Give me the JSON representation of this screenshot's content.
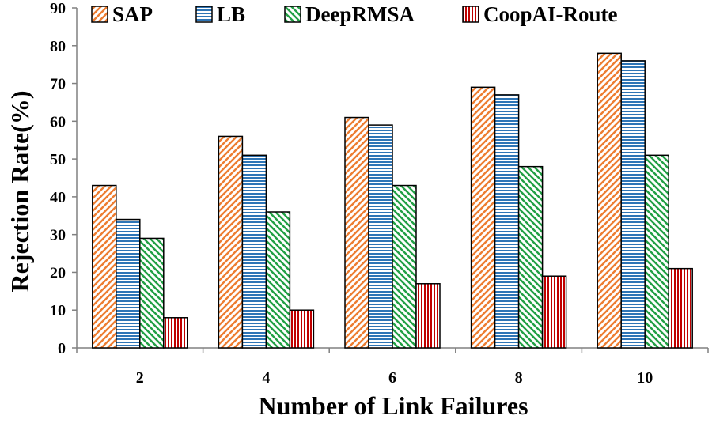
{
  "colors": {
    "SAP": "#ed7d31",
    "LB": "#2e75b6",
    "DeepRMSA": "#22a045",
    "CoopAI-Route": "#c00000"
  },
  "chart_data": {
    "type": "bar",
    "title": "",
    "xlabel": "Number of Link Failures",
    "ylabel": "Rejection Rate(%)",
    "ylim": [
      0,
      90
    ],
    "yticks": [
      0,
      10,
      20,
      30,
      40,
      50,
      60,
      70,
      80,
      90
    ],
    "categories": [
      "2",
      "4",
      "6",
      "8",
      "10"
    ],
    "grid": false,
    "legend_position": "top",
    "series": [
      {
        "name": "SAP",
        "pattern": "diagonal-hatch",
        "values": [
          43,
          56,
          61,
          69,
          78
        ]
      },
      {
        "name": "LB",
        "pattern": "horizontal-lines",
        "values": [
          34,
          51,
          59,
          67,
          76
        ]
      },
      {
        "name": "DeepRMSA",
        "pattern": "reverse-diagonal-hatch",
        "values": [
          29,
          36,
          43,
          48,
          51
        ]
      },
      {
        "name": "CoopAI-Route",
        "pattern": "vertical-lines",
        "values": [
          8,
          10,
          17,
          19,
          21
        ]
      }
    ]
  }
}
